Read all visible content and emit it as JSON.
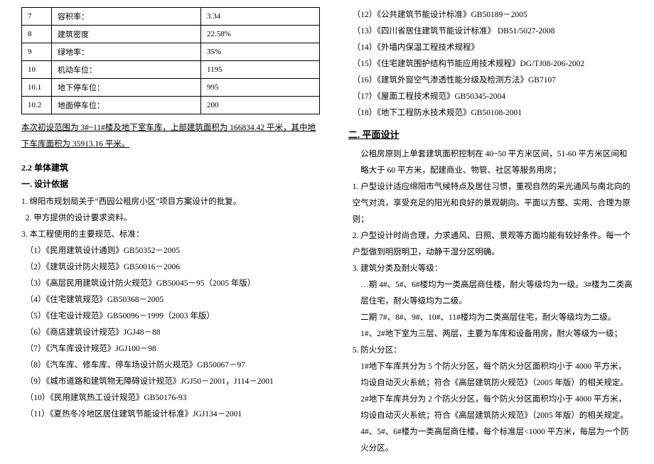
{
  "table": {
    "rows": [
      {
        "idx": "7",
        "label": "容积率：",
        "val": "3.34"
      },
      {
        "idx": "8",
        "label": "建筑密度",
        "val": "22.58%"
      },
      {
        "idx": "9",
        "label": "绿地率：",
        "val": "35%"
      },
      {
        "idx": "10",
        "label": "机动车位：",
        "val": "1195"
      },
      {
        "idx": "10.1",
        "label": "地下停车位：",
        "val": "995"
      },
      {
        "idx": "10.2",
        "label": "地面停车位：",
        "val": "200"
      }
    ]
  },
  "scope_note": "本次初设范围为 3#~11#楼及地下室车库，上部建筑面积为 166834.42 平米，其中地下车库面积为 35913.16 平米。",
  "sec22": "2.2 单体建筑",
  "design_basis_title": "一. 设计依据",
  "design_basis": [
    "1. 绵阳市规划局关于“西园公租房小区”项目方案设计的批复。",
    "2. 甲方提供的设计要求资料。",
    "3. 本工程使用的主要规范、标准："
  ],
  "codes_left": [
    "（1）《民用建筑设计通则》GB50352－2005",
    "（2）《建筑设计防火规范》GB50016－2006",
    "（3）《高层民用建筑设计防火规范》GB50045－95（2005 年版）",
    "（4）《住宅建筑规范》GB50368－2005",
    "（5）《住宅设计规范》GB50096－1999（2003 年版）",
    "（6）《商店建筑设计规范》JGJ48－88",
    "（7）《汽车库设计规范》JGJ100－98",
    "（8）《汽车库、修车库、停车场设计防火规范》GB50067－97",
    "（9）《城市道路和建筑物无障碍设计规范》JGJ50－2001，J114－2001",
    "（10）《民用建筑热工设计规范》GB50176-93",
    "（11）《夏热冬冷地区居住建筑节能设计标准》JGJ134－2001"
  ],
  "codes_right": [
    "（12）《公共建筑节能设计标准》GB50189－2005",
    "（13）《四川省居住建筑节能设计标准》 DB51/5027-2008",
    "（14）《外墙内保温工程技术规程》",
    "（15）《住宅建筑围护结构节能应用技术规程》DG/TJ08-206-2002",
    "（16）《建筑外窗空气渗透性能分级及检测方法》GB7107",
    "（17）《屋面工程技术规范》GB50345-2004",
    "（18）《地下工程防水技术规范》GB50108-2001"
  ],
  "plane_title": "二. 平面设计",
  "plane_intro": "公租房原则上单套建筑面积控制在 40~50 平方米区间，51-60 平方米区间和略大于 60 平方米，配建商业、物管、社区等服务用房；",
  "plane_items": [
    "1. 户型设计适应绵阳市气候特点及居住习惯，重视自然的采光通风与南北向的空气对流，享受充足的阳光和良好的景观朝向。平面以方整、实用、合理为原则；",
    "2. 户型设计时尚合理，力求通风、日照、景观等方面均能有较好条件。每一个户型做到明厨明卫，动静干湿分区明确。",
    "3. 建筑分类及耐火等级：",
    "…期 4#、5#、6#楼均为一类高层商住楼，耐火等级均为一级。3#楼为二类高层住宅，耐火等级均为二级。",
    "二期 7#、8#、9#、10#、11#楼均为二类高层住宅，耐火等级均为二级。",
    "1#、2#地下室为三层、两层，主要为车库和设备用房，耐火等级为一级；",
    "5. 防火分区：",
    "1#地下车库共分为 5 个防火分区，每个防火分区面积均小于 4000 平方米，均设自动灭火系统；符合《高层建筑防火规范》（2005 年版）的相关规定。",
    "2#地下车库共分为 2 个防火分区，每个防火分区面积均小于 4000 平方米，均设自动灭火系统；符合《高层建筑防火规范》（2005 年版）的相关规定。",
    "4#、5#、6#楼为一类高层商住楼，每个标准层<1000 平方米，每层为一个防火分区。"
  ]
}
